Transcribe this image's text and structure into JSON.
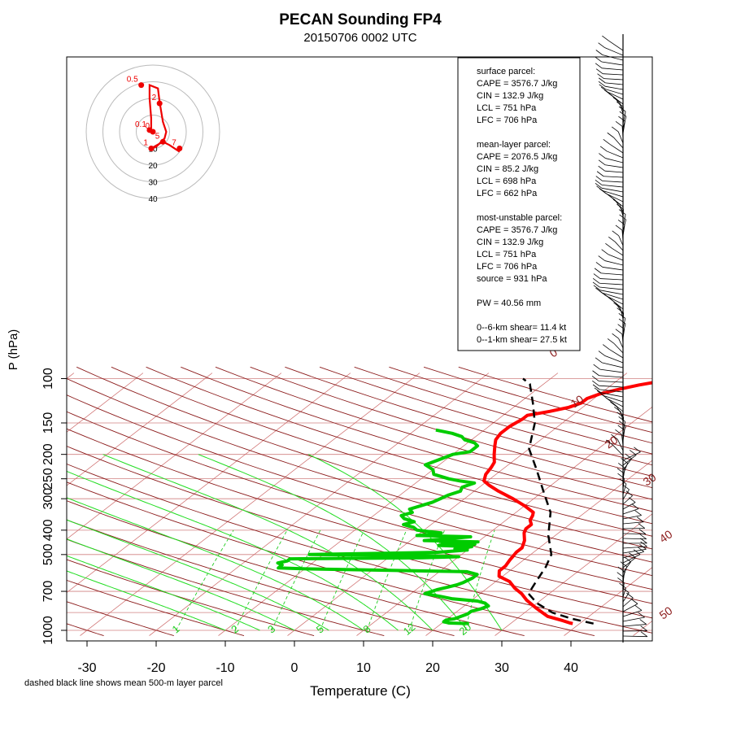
{
  "chart_data": {
    "type": "line",
    "title": "PECAN Sounding FP4",
    "subtitle": "20150706 0002 UTC",
    "xlabel": "Temperature (C)",
    "ylabel": "P (hPa)",
    "footnote": "dashed black line shows mean 500-m layer parcel",
    "x_ticks": [
      -30,
      -20,
      -10,
      0,
      10,
      20,
      30,
      40
    ],
    "y_ticks": [
      100,
      150,
      200,
      250,
      300,
      400,
      500,
      700,
      1000
    ],
    "xlim": [
      -33,
      45
    ],
    "ylim": [
      1000,
      100
    ],
    "y_scale": "log",
    "dry_adiabat_labels": [
      "0",
      "10",
      "20",
      "30",
      "40",
      "50"
    ],
    "mixing_ratio_labels": [
      "1",
      "2",
      "3",
      "5",
      "8",
      "12",
      "20"
    ],
    "series": [
      {
        "color": "#ff0000",
        "points": [
          [
            39,
            940
          ],
          [
            38.5,
            935
          ],
          [
            37,
            915
          ],
          [
            34,
            880
          ],
          [
            31,
            820
          ],
          [
            28,
            760
          ],
          [
            26,
            715
          ],
          [
            24,
            680
          ],
          [
            22,
            640
          ],
          [
            19.5,
            610
          ],
          [
            18.5,
            580
          ],
          [
            18.5,
            555
          ],
          [
            18,
            525
          ],
          [
            17.8,
            510
          ],
          [
            17.5,
            490
          ],
          [
            17.5,
            470
          ],
          [
            16.5,
            440
          ],
          [
            15,
            410
          ],
          [
            14.5,
            395
          ],
          [
            14.5,
            380
          ],
          [
            13.5,
            365
          ],
          [
            13,
            350
          ],
          [
            12.5,
            340
          ],
          [
            10,
            320
          ],
          [
            7,
            300
          ],
          [
            3.5,
            280
          ],
          [
            1,
            265
          ],
          [
            -0.5,
            255
          ],
          [
            -1.5,
            240
          ],
          [
            -2,
            225
          ],
          [
            -2.5,
            215
          ],
          [
            -4,
            200
          ],
          [
            -5.5,
            185
          ],
          [
            -6.5,
            175
          ],
          [
            -7,
            165
          ],
          [
            -7,
            155
          ],
          [
            -6.5,
            145
          ],
          [
            -6.5,
            140
          ],
          [
            -4,
            135
          ],
          [
            -2,
            130
          ],
          [
            -1,
            125
          ],
          [
            -1,
            120
          ],
          [
            0,
            115
          ],
          [
            2,
            110
          ],
          [
            4,
            106
          ],
          [
            6,
            103
          ],
          [
            8,
            100
          ],
          [
            10,
            98
          ]
        ]
      },
      {
        "color": "#00cc00",
        "points": [
          [
            24,
            940
          ],
          [
            21,
            935
          ],
          [
            20.5,
            930
          ],
          [
            20,
            925
          ],
          [
            20,
            910
          ],
          [
            21,
            900
          ],
          [
            21.5,
            880
          ],
          [
            22,
            860
          ],
          [
            22,
            840
          ],
          [
            23,
            820
          ],
          [
            23.5,
            800
          ],
          [
            22.5,
            780
          ],
          [
            21,
            765
          ],
          [
            17,
            750
          ],
          [
            15,
            735
          ],
          [
            12,
            715
          ],
          [
            13,
            690
          ],
          [
            14,
            675
          ],
          [
            15,
            660
          ],
          [
            15.5,
            645
          ],
          [
            16,
            620
          ],
          [
            16,
            600
          ],
          [
            14,
            585
          ],
          [
            -10,
            570
          ],
          [
            -14,
            565
          ],
          [
            -14,
            550
          ],
          [
            -15,
            540
          ],
          [
            -14,
            530
          ],
          [
            -14,
            520
          ],
          [
            5,
            515
          ],
          [
            10,
            510
          ],
          [
            5,
            505
          ],
          [
            -12,
            500
          ],
          [
            6,
            490
          ],
          [
            10,
            480
          ],
          [
            8,
            475
          ],
          [
            10,
            465
          ],
          [
            5,
            460
          ],
          [
            10,
            455
          ],
          [
            5,
            450
          ],
          [
            10,
            445
          ],
          [
            2,
            440
          ],
          [
            6,
            430
          ],
          [
            8,
            425
          ],
          [
            0,
            420
          ],
          [
            2,
            415
          ],
          [
            3,
            410
          ],
          [
            -1,
            400
          ],
          [
            -2,
            390
          ],
          [
            -4,
            380
          ],
          [
            -3,
            370
          ],
          [
            -5,
            360
          ],
          [
            -6,
            350
          ],
          [
            -5,
            340
          ],
          [
            -6,
            330
          ],
          [
            -5,
            320
          ],
          [
            -4,
            310
          ],
          [
            -3.5,
            300
          ],
          [
            -3,
            290
          ],
          [
            -2,
            280
          ],
          [
            -2.5,
            270
          ],
          [
            -1.5,
            260
          ],
          [
            -4,
            255
          ],
          [
            -6,
            250
          ],
          [
            -9,
            240
          ],
          [
            -10,
            230
          ],
          [
            -12,
            220
          ],
          [
            -11,
            210
          ],
          [
            -10,
            200
          ],
          [
            -8,
            195
          ],
          [
            -8,
            185
          ],
          [
            -9,
            180
          ],
          [
            -11,
            175
          ],
          [
            -12,
            170
          ],
          [
            -14,
            165
          ],
          [
            -17,
            160
          ]
        ]
      },
      {
        "color": "#000000",
        "points": [
          [
            42,
            940
          ],
          [
            38,
            900
          ],
          [
            34,
            850
          ],
          [
            30,
            780
          ],
          [
            27,
            715
          ],
          [
            26,
            650
          ],
          [
            24.5,
            560
          ],
          [
            23,
            500
          ],
          [
            19,
            420
          ],
          [
            15,
            340
          ],
          [
            10,
            280
          ],
          [
            5,
            230
          ],
          [
            0,
            190
          ],
          [
            -4,
            150
          ],
          [
            -8,
            125
          ],
          [
            -12,
            105
          ],
          [
            -14,
            100
          ]
        ]
      }
    ],
    "info_box": [
      "surface parcel:",
      "CAPE = 3576.7 J/kg",
      "CIN = 132.9 J/kg",
      "LCL = 751 hPa",
      "LFC = 706 hPa",
      "",
      "mean-layer parcel:",
      "CAPE = 2076.5 J/kg",
      "CIN = 85.2 J/kg",
      "LCL = 698 hPa",
      "LFC = 662 hPa",
      "",
      "most-unstable parcel:",
      "CAPE = 3576.7 J/kg",
      "CIN = 132.9 J/kg",
      "LCL = 751 hPa",
      "LFC = 706 hPa",
      "source = 931 hPa",
      "",
      "PW =  40.56 mm",
      "",
      "0--6-km shear= 11.4 kt",
      "0--1-km shear= 27.5 kt"
    ],
    "hodograph": {
      "ring_labels": [
        "10",
        "20",
        "30",
        "40"
      ],
      "point_labels": [
        {
          "label": "0.5",
          "u": -3.5,
          "v": 14
        },
        {
          "label": "2",
          "u": 2,
          "v": 8.5
        },
        {
          "label": "0.1",
          "u": -1,
          "v": 0.5
        },
        {
          "label": "0",
          "u": 0,
          "v": 0
        },
        {
          "label": "5",
          "u": 3,
          "v": -3
        },
        {
          "label": "7",
          "u": 8,
          "v": -5
        },
        {
          "label": "1",
          "u": -0.5,
          "v": -5
        }
      ],
      "trace": [
        [
          -0.5,
          1
        ],
        [
          -0.5,
          4
        ],
        [
          -1,
          10
        ],
        [
          -1,
          14
        ],
        [
          1.5,
          13
        ],
        [
          2,
          9
        ],
        [
          3,
          3
        ],
        [
          4,
          0
        ],
        [
          3.5,
          -2
        ],
        [
          2.5,
          -3
        ],
        [
          1,
          -4.5
        ],
        [
          -0.5,
          -5
        ],
        [
          3,
          -3
        ],
        [
          5,
          -4
        ],
        [
          8,
          -6
        ]
      ]
    }
  }
}
